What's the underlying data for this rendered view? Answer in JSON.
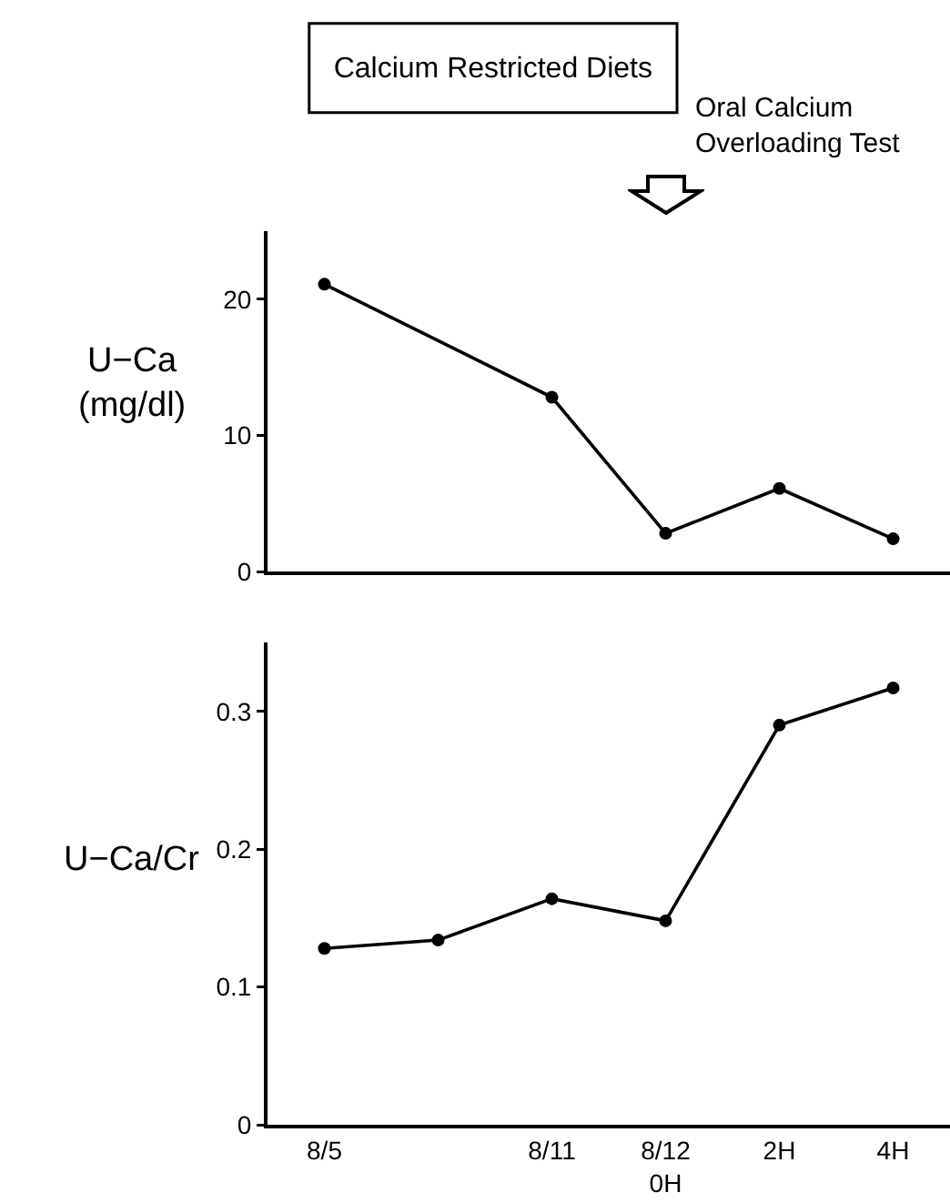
{
  "chart_data": [
    {
      "type": "line",
      "title": "Calcium Restricted Diets",
      "ylabel": "U−Ca\n(mg/dl)",
      "annotations": [
        "Oral Calcium\nOverloading Test"
      ],
      "series": [
        {
          "color": "#000000",
          "values": [
            21.1,
            null,
            12.8,
            2.8,
            6.1,
            2.4
          ]
        }
      ],
      "ylim": [
        0,
        25
      ],
      "yticks": [
        0,
        10,
        20
      ],
      "tick_labels": "y",
      "marker": "circle",
      "line_style": "solid",
      "grid": false
    },
    {
      "type": "line",
      "ylabel": "U−Ca/Cr",
      "categories": [
        "8/5",
        null,
        "8/11",
        "8/12\n0H",
        "2H",
        "4H"
      ],
      "series": [
        {
          "color": "#000000",
          "values": [
            0.128,
            0.134,
            0.164,
            0.148,
            0.29,
            0.317
          ]
        }
      ],
      "ylim": [
        0,
        0.35
      ],
      "yticks": [
        0,
        0.1,
        0.2,
        0.3
      ],
      "marker": "circle",
      "line_style": "solid",
      "grid": false
    }
  ]
}
